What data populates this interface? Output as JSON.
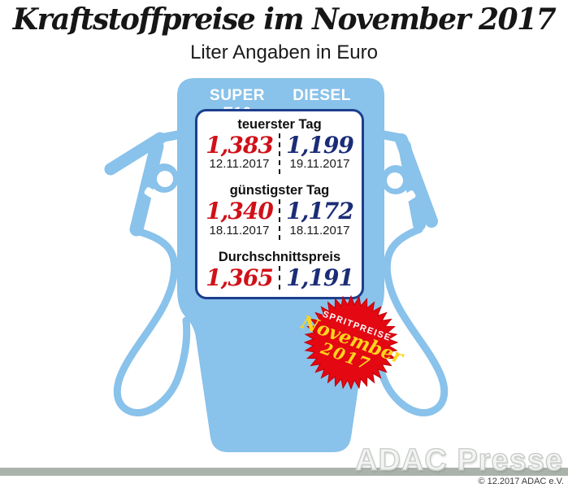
{
  "header": {
    "title": "Kraftstoffpreise im November 2017",
    "subtitle": "Liter Angaben in Euro"
  },
  "pump": {
    "columns": [
      "SUPER E10",
      "DIESEL"
    ],
    "sections": [
      {
        "label": "teuerster Tag",
        "super_e10": {
          "price": "1,383",
          "date": "12.11.2017"
        },
        "diesel": {
          "price": "1,199",
          "date": "19.11.2017"
        }
      },
      {
        "label": "günstigster Tag",
        "super_e10": {
          "price": "1,340",
          "date": "18.11.2017"
        },
        "diesel": {
          "price": "1,172",
          "date": "18.11.2017"
        }
      },
      {
        "label": "Durchschnittspreis",
        "super_e10": {
          "price": "1,365"
        },
        "diesel": {
          "price": "1,191"
        }
      }
    ]
  },
  "badge": {
    "line1": "SPRITPREISE",
    "line2": "November",
    "line3": "2017"
  },
  "footer": {
    "watermark": "ADAC Presse",
    "copyright": "© 12.2017 ADAC e.V."
  },
  "colors": {
    "pump_blue": "#89C2EA",
    "panel_border_navy": "#1D3E8E",
    "super_e10_red": "#D01118",
    "diesel_blue": "#1B2D77",
    "badge_red": "#E30812",
    "badge_yellow": "#FFD41E",
    "ground_bar_gray": "#ABB2AB"
  },
  "chart_data": {
    "type": "table",
    "title": "Kraftstoffpreise im November 2017",
    "subtitle": "Liter Angaben in Euro",
    "unit": "Euro je Liter",
    "columns": [
      "SUPER E10",
      "DIESEL"
    ],
    "rows": [
      {
        "label": "teuerster Tag",
        "super_e10": 1.383,
        "super_e10_datum": "12.11.2017",
        "diesel": 1.199,
        "diesel_datum": "19.11.2017"
      },
      {
        "label": "günstigster Tag",
        "super_e10": 1.34,
        "super_e10_datum": "18.11.2017",
        "diesel": 1.172,
        "diesel_datum": "18.11.2017"
      },
      {
        "label": "Durchschnittspreis",
        "super_e10": 1.365,
        "diesel": 1.191
      }
    ]
  }
}
